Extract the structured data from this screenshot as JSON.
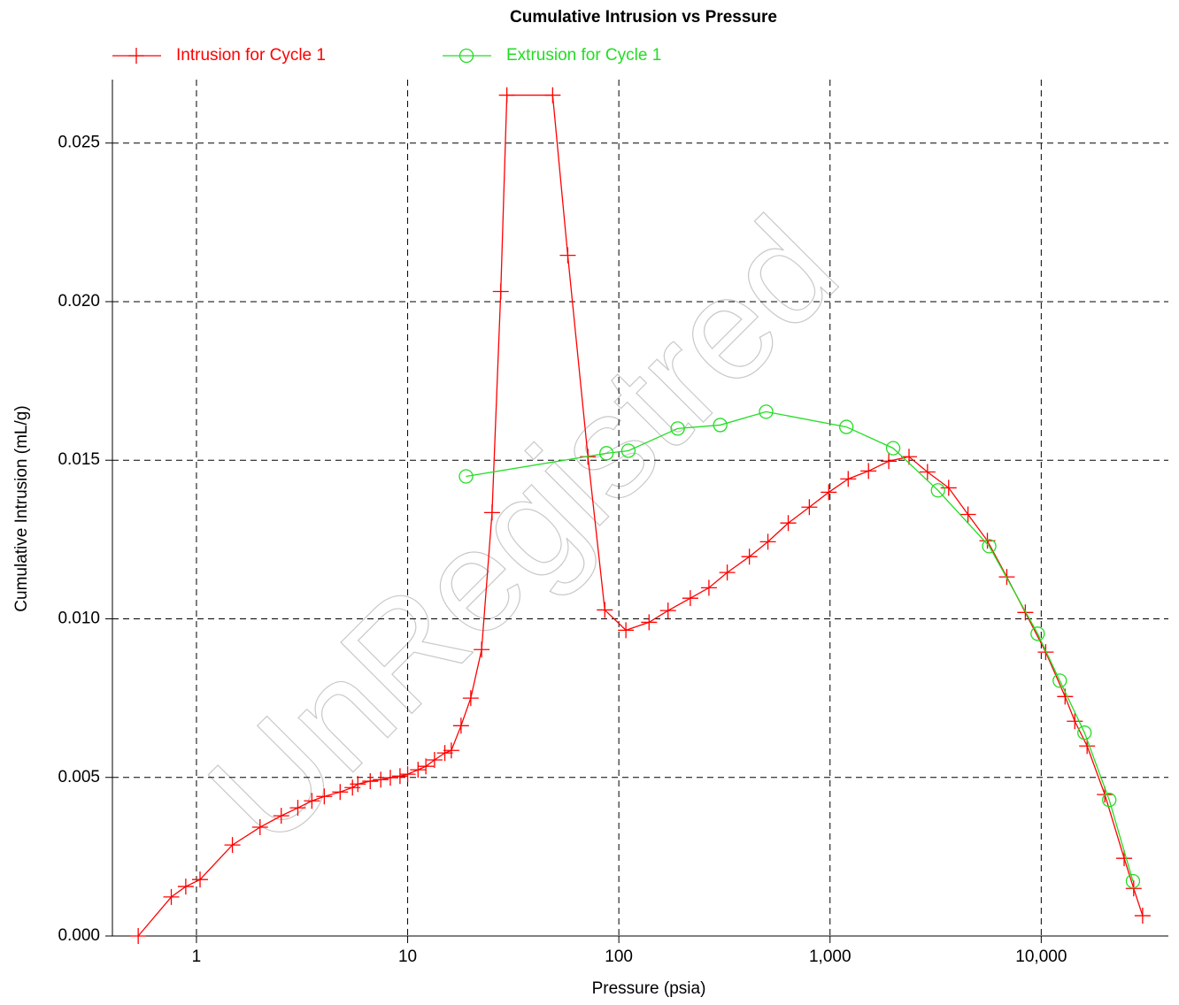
{
  "chart_data": {
    "type": "line",
    "title": "Cumulative Intrusion vs Pressure",
    "xlabel": "Pressure (psia)",
    "ylabel": "Cumulative Intrusion (mL/g)",
    "watermark": "UnRegistred",
    "xscale": "log",
    "grid": true,
    "legend": "top",
    "xlim": [
      0.4,
      40000
    ],
    "ylim": [
      0,
      0.027
    ],
    "xticks": [
      1,
      10,
      100,
      {
        "value": 1000,
        "label": "1,000"
      },
      {
        "value": 10000,
        "label": "10,000"
      }
    ],
    "yticks": [
      {
        "value": 0,
        "label": "0.000"
      },
      {
        "value": 0.005,
        "label": "0.005"
      },
      {
        "value": 0.01,
        "label": "0.010"
      },
      {
        "value": 0.015,
        "label": "0.015"
      },
      {
        "value": 0.02,
        "label": "0.020"
      },
      {
        "value": 0.025,
        "label": "0.025"
      }
    ],
    "series": [
      {
        "name": "Intrusion for Cycle 1",
        "color": "#ff0000",
        "marker": "plus",
        "x": [
          0.53,
          0.76,
          0.89,
          1.04,
          1.48,
          2.0,
          2.52,
          3.02,
          3.52,
          4.03,
          4.79,
          5.48,
          5.81,
          6.65,
          7.46,
          8.28,
          9.2,
          10.0,
          11.2,
          12.2,
          13.4,
          15.0,
          16.1,
          17.9,
          19.9,
          22.4,
          25.1,
          27.6,
          29.5,
          48.6,
          57.3,
          71.4,
          85.8,
          108,
          139,
          171,
          218,
          267,
          326,
          415,
          508,
          634,
          798,
          986,
          1219,
          1521,
          1897,
          2366,
          2893,
          3645,
          4500,
          5560,
          6870,
          8410,
          10500,
          12970,
          14420,
          16490,
          20000,
          24700,
          27400,
          30200
        ],
        "values": [
          0,
          0.00123,
          0.00156,
          0.00178,
          0.00287,
          0.00343,
          0.00379,
          0.00404,
          0.00426,
          0.0044,
          0.00454,
          0.00468,
          0.00479,
          0.00488,
          0.00493,
          0.00499,
          0.00504,
          0.0051,
          0.00524,
          0.00535,
          0.00555,
          0.00577,
          0.00585,
          0.00663,
          0.0075,
          0.00903,
          0.01335,
          0.02032,
          0.02651,
          0.02651,
          0.02146,
          0.01511,
          0.01028,
          0.00964,
          0.00989,
          0.01026,
          0.01065,
          0.01098,
          0.01146,
          0.01196,
          0.01243,
          0.01302,
          0.01352,
          0.01399,
          0.01441,
          0.01466,
          0.01497,
          0.01511,
          0.01463,
          0.01413,
          0.01329,
          0.01246,
          0.01132,
          0.0102,
          0.00895,
          0.00755,
          0.00677,
          0.00599,
          0.00446,
          0.00245,
          0.0015,
          0.00064
        ]
      },
      {
        "name": "Extrusion for Cycle 1",
        "color": "#22dd22",
        "marker": "circle",
        "x": [
          18.9,
          87.4,
          111,
          190,
          302,
          498,
          1195,
          1990,
          3245,
          5670,
          9620,
          12240,
          16030,
          20990,
          27180
        ],
        "values": [
          0.01449,
          0.01522,
          0.0153,
          0.016,
          0.01611,
          0.01653,
          0.01605,
          0.01538,
          0.01405,
          0.01229,
          0.00953,
          0.00805,
          0.00641,
          0.00429,
          0.00173
        ]
      }
    ]
  }
}
